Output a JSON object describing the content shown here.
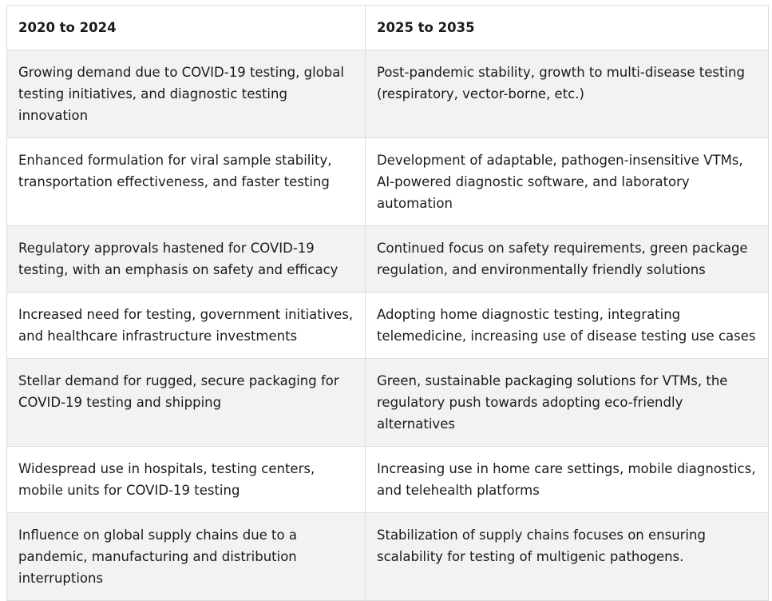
{
  "table": {
    "headers": [
      "2020 to 2024",
      "2025 to 2035"
    ],
    "rows": [
      [
        "Growing demand due to COVID-19 testing, global testing initiatives, and diagnostic testing innovation",
        "Post-pandemic stability, growth to multi-disease testing (respiratory, vector-borne, etc.)"
      ],
      [
        "Enhanced formulation for viral sample stability, transportation effectiveness, and faster testing",
        "Development of adaptable, pathogen-insensitive VTMs, AI-powered diagnostic software, and laboratory automation"
      ],
      [
        "Regulatory approvals hastened for COVID-19 testing, with an emphasis on safety and efficacy",
        "Continued focus on safety requirements, green package regulation, and environmentally friendly solutions"
      ],
      [
        "Increased need for testing, government initiatives, and healthcare infrastructure investments",
        "Adopting home diagnostic testing, integrating telemedicine, increasing use of disease testing use cases"
      ],
      [
        "Stellar demand for rugged, secure packaging for COVID-19 testing and shipping",
        "Green, sustainable packaging solutions for VTMs, the regulatory push towards adopting eco-friendly alternatives"
      ],
      [
        "Widespread use in hospitals, testing centers, mobile units for COVID-19 testing",
        "Increasing use in home care settings, mobile diagnostics, and telehealth platforms"
      ],
      [
        "Influence on global supply chains due to a pandemic, manufacturing and distribution interruptions",
        "Stabilization of supply chains focuses on ensuring scalability for testing of multigenic pathogens."
      ]
    ]
  }
}
